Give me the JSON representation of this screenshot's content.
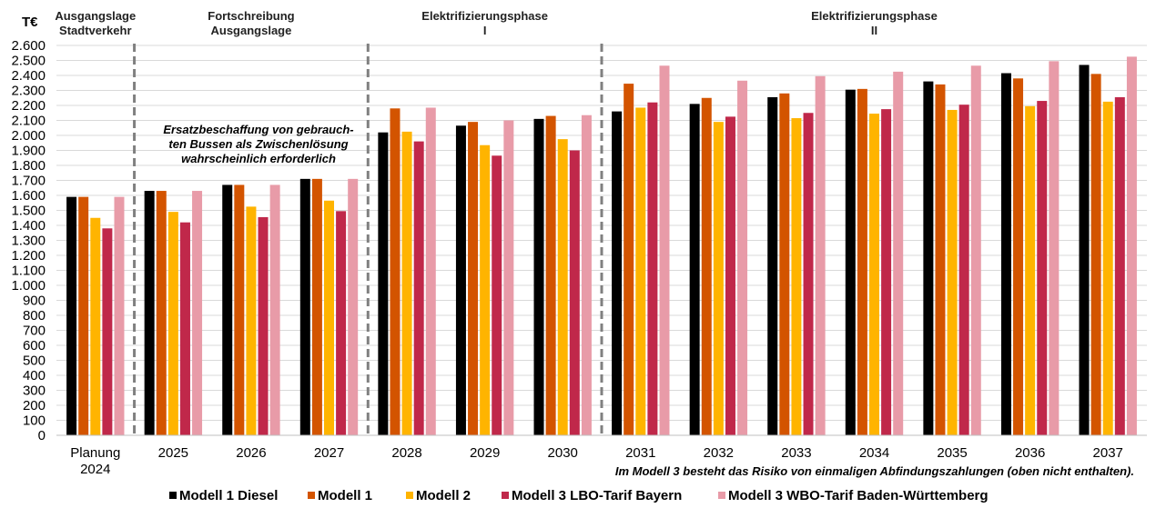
{
  "chart_data": {
    "type": "bar",
    "ylabel": "T€",
    "ylim": [
      0,
      2600
    ],
    "ystep": 100,
    "grid": true,
    "legend_position": "bottom",
    "categories": [
      "Planung\n2024",
      "2025",
      "2026",
      "2027",
      "2028",
      "2029",
      "2030",
      "2031",
      "2032",
      "2033",
      "2034",
      "2035",
      "2036",
      "2037"
    ],
    "series": [
      {
        "name": "Modell 1 Diesel",
        "color": "#000000",
        "values": [
          1590,
          1630,
          1670,
          1710,
          2020,
          2065,
          2110,
          2160,
          2210,
          2255,
          2305,
          2360,
          2415,
          2470
        ]
      },
      {
        "name": "Modell 1",
        "color": "#D35400",
        "values": [
          1590,
          1630,
          1670,
          1710,
          2180,
          2090,
          2130,
          2345,
          2250,
          2280,
          2310,
          2340,
          2380,
          2410
        ]
      },
      {
        "name": "Modell 2",
        "color": "#FFB400",
        "values": [
          1450,
          1490,
          1525,
          1565,
          2025,
          1935,
          1975,
          2185,
          2090,
          2115,
          2145,
          2170,
          2195,
          2225
        ]
      },
      {
        "name": "Modell 3 LBO-Tarif Bayern",
        "color": "#C0284A",
        "values": [
          1380,
          1420,
          1455,
          1495,
          1960,
          1865,
          1900,
          2220,
          2125,
          2150,
          2175,
          2205,
          2230,
          2255
        ]
      },
      {
        "name": "Modell 3 WBO-Tarif Baden-Württemberg",
        "color": "#E89BA8",
        "values": [
          1590,
          1630,
          1670,
          1710,
          2185,
          2100,
          2135,
          2465,
          2365,
          2395,
          2425,
          2465,
          2495,
          2525
        ]
      }
    ],
    "phases": [
      {
        "label": "Ausgangslage\nStadtverkehr",
        "from": 0,
        "to": 0
      },
      {
        "label": "Fortschreibung\nAusgangslage",
        "from": 1,
        "to": 3
      },
      {
        "label": "Elektrifizierungsphase\nI",
        "from": 4,
        "to": 6
      },
      {
        "label": "Elektrifizierungsphase\nII",
        "from": 7,
        "to": 13
      }
    ],
    "dividers_after_category": [
      0,
      3,
      6
    ],
    "annotations": [
      "Ersatzbeschaffung von gebrauch-\nten Bussen als Zwischenlösung\nwahrscheinlich erforderlich",
      "Im Modell 3 besteht das Risiko von einmaligen Abfindungszahlungen (oben nicht enthalten)."
    ]
  }
}
